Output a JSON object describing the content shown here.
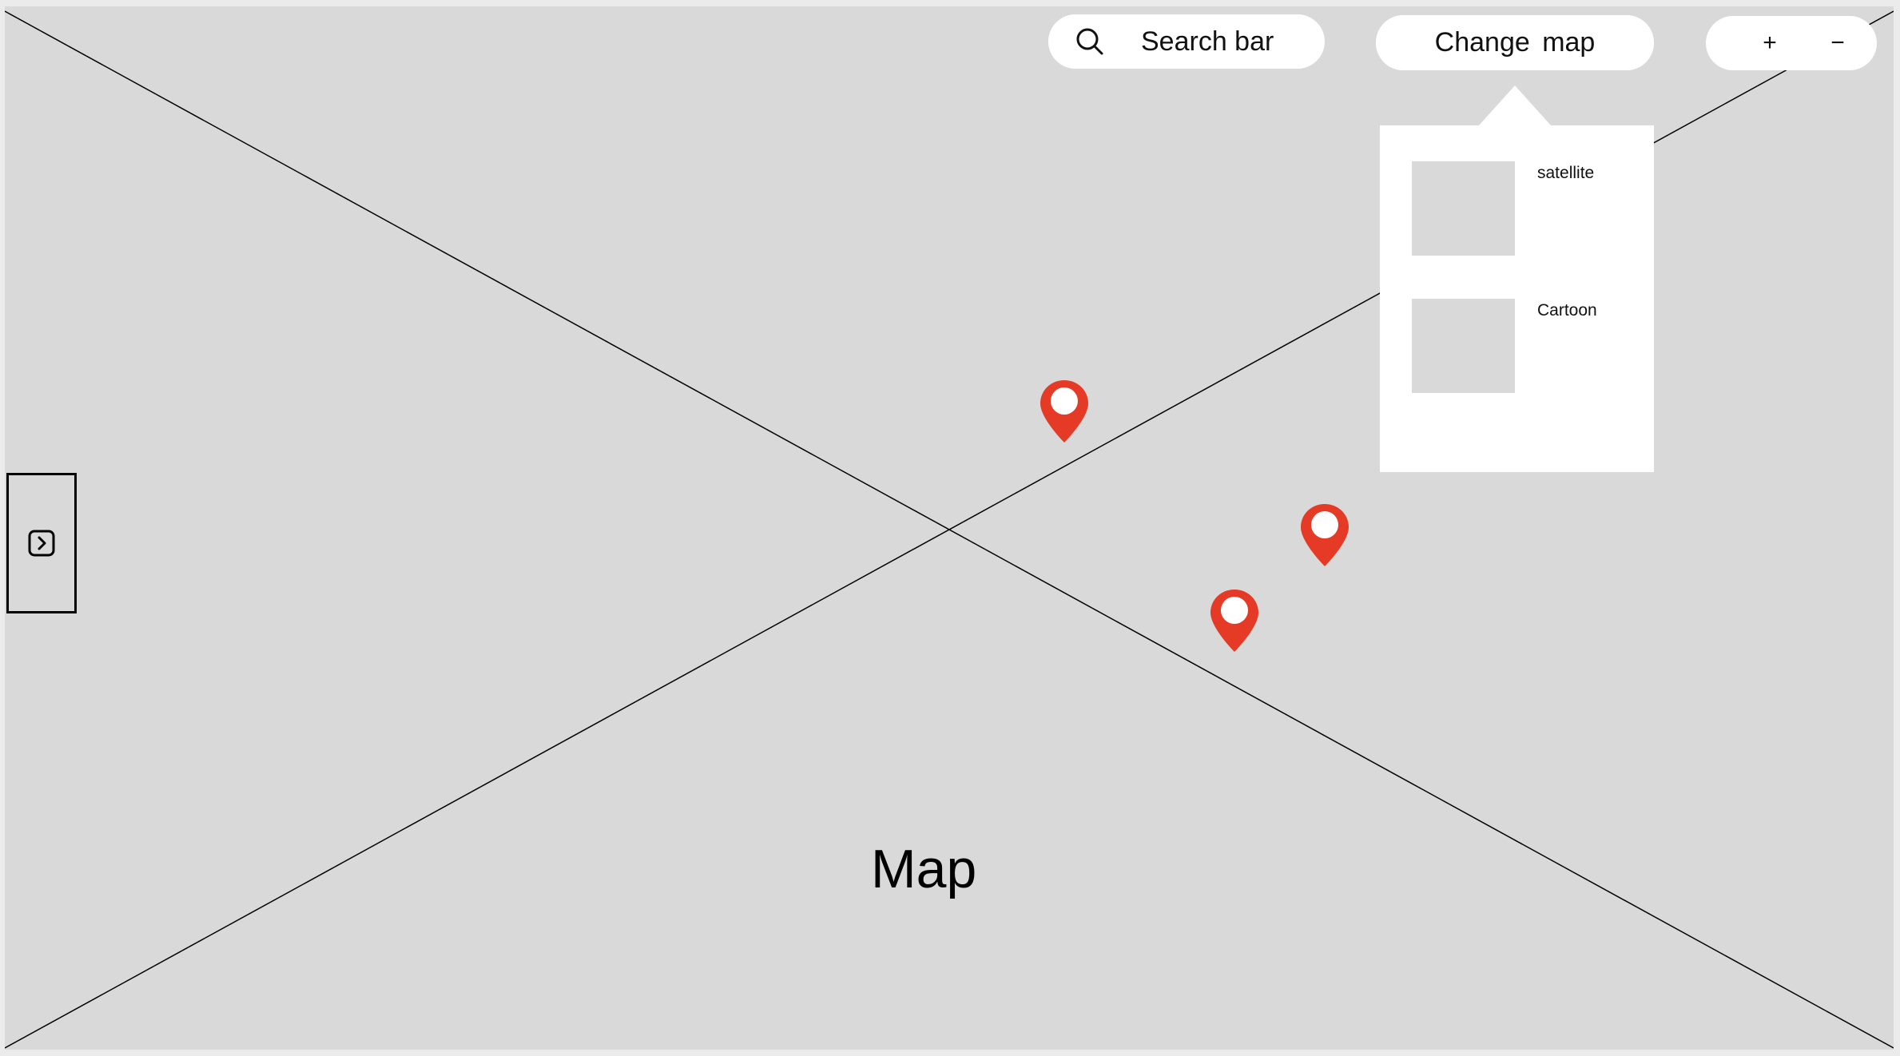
{
  "map": {
    "label": "Map"
  },
  "search": {
    "label": "Search bar",
    "icon": "search-icon"
  },
  "change_map": {
    "label": "Change map"
  },
  "zoom": {
    "in_label": "+",
    "out_label": "−"
  },
  "map_type_menu": {
    "options": [
      {
        "label": "satellite"
      },
      {
        "label": "Cartoon"
      }
    ]
  },
  "sidebar_toggle": {
    "icon": "chevron-right-square-icon"
  },
  "colors": {
    "map_background": "#d9d9d9",
    "page_background": "#ebebeb",
    "pin": "#e53a25",
    "surface": "#ffffff"
  }
}
